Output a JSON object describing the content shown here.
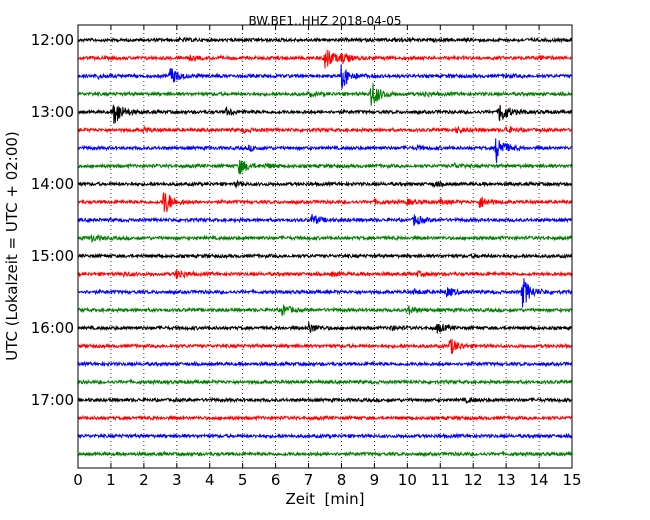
{
  "chart_data": {
    "type": "line",
    "title": "BW.BE1..HHZ 2018-04-05",
    "xlabel": "Zeit  [min]",
    "ylabel": "UTC (Lokalzeit = UTC + 02:00)",
    "xlim": [
      0,
      15
    ],
    "x_ticks": [
      "0",
      "1",
      "2",
      "3",
      "4",
      "5",
      "6",
      "7",
      "8",
      "9",
      "10",
      "11",
      "12",
      "13",
      "14",
      "15"
    ],
    "y_ticks": [
      {
        "label": "12:00",
        "row": 0
      },
      {
        "label": "13:00",
        "row": 4
      },
      {
        "label": "14:00",
        "row": 8
      },
      {
        "label": "15:00",
        "row": 12
      },
      {
        "label": "16:00",
        "row": 16
      },
      {
        "label": "17:00",
        "row": 20
      }
    ],
    "color_cycle": [
      "#000000",
      "#ff0000",
      "#0000ff",
      "#008000"
    ],
    "grid": "vertical dotted",
    "series": [
      {
        "start": "12:00",
        "color": "#000000",
        "events": [
          {
            "min": 3.1,
            "amp": 0.08
          },
          {
            "min": 9.6,
            "amp": 0.07
          }
        ]
      },
      {
        "start": "12:15",
        "color": "#ff0000",
        "events": [
          {
            "min": 3.4,
            "amp": 0.1
          },
          {
            "min": 7.5,
            "amp": 0.85
          },
          {
            "min": 8.0,
            "amp": 0.3
          },
          {
            "min": 14.0,
            "amp": 0.1
          }
        ]
      },
      {
        "start": "12:30",
        "color": "#0000ff",
        "events": [
          {
            "min": 0.6,
            "amp": 0.12
          },
          {
            "min": 2.8,
            "amp": 0.6
          },
          {
            "min": 8.0,
            "amp": 0.9
          },
          {
            "min": 13.0,
            "amp": 0.08
          }
        ]
      },
      {
        "start": "12:45",
        "color": "#008000",
        "events": [
          {
            "min": 7.0,
            "amp": 0.1
          },
          {
            "min": 8.9,
            "amp": 0.95
          },
          {
            "min": 10.5,
            "amp": 0.15
          }
        ]
      },
      {
        "start": "13:00",
        "color": "#000000",
        "events": [
          {
            "min": 1.1,
            "amp": 0.95
          },
          {
            "min": 4.5,
            "amp": 0.25
          },
          {
            "min": 12.8,
            "amp": 0.8
          }
        ]
      },
      {
        "start": "13:15",
        "color": "#ff0000",
        "events": [
          {
            "min": 2.0,
            "amp": 0.15
          },
          {
            "min": 5.0,
            "amp": 0.12
          },
          {
            "min": 11.5,
            "amp": 0.15
          },
          {
            "min": 13.0,
            "amp": 0.2
          }
        ]
      },
      {
        "start": "13:30",
        "color": "#0000ff",
        "events": [
          {
            "min": 5.2,
            "amp": 0.15
          },
          {
            "min": 10.3,
            "amp": 0.1
          },
          {
            "min": 12.7,
            "amp": 0.95
          }
        ]
      },
      {
        "start": "13:45",
        "color": "#008000",
        "events": [
          {
            "min": 4.9,
            "amp": 0.55
          },
          {
            "min": 5.7,
            "amp": 0.12
          },
          {
            "min": 11.4,
            "amp": 0.15
          }
        ]
      },
      {
        "start": "14:00",
        "color": "#000000",
        "events": [
          {
            "min": 4.8,
            "amp": 0.12
          },
          {
            "min": 10.8,
            "amp": 0.15
          }
        ]
      },
      {
        "start": "14:15",
        "color": "#ff0000",
        "events": [
          {
            "min": 2.6,
            "amp": 0.95
          },
          {
            "min": 9.0,
            "amp": 0.12
          },
          {
            "min": 10.0,
            "amp": 0.15
          },
          {
            "min": 11.0,
            "amp": 0.12
          },
          {
            "min": 12.2,
            "amp": 0.4
          }
        ]
      },
      {
        "start": "14:30",
        "color": "#0000ff",
        "events": [
          {
            "min": 7.1,
            "amp": 0.35
          },
          {
            "min": 10.2,
            "amp": 0.35
          }
        ]
      },
      {
        "start": "14:45",
        "color": "#008000",
        "events": [
          {
            "min": 0.4,
            "amp": 0.2
          }
        ]
      },
      {
        "start": "15:00",
        "color": "#000000",
        "events": [
          {
            "min": 12.0,
            "amp": 0.08
          }
        ]
      },
      {
        "start": "15:15",
        "color": "#ff0000",
        "events": [
          {
            "min": 1.4,
            "amp": 0.12
          },
          {
            "min": 3.0,
            "amp": 0.35
          },
          {
            "min": 7.7,
            "amp": 0.12
          },
          {
            "min": 10.3,
            "amp": 0.12
          }
        ]
      },
      {
        "start": "15:30",
        "color": "#0000ff",
        "events": [
          {
            "min": 10.2,
            "amp": 0.15
          },
          {
            "min": 11.2,
            "amp": 0.3
          },
          {
            "min": 13.5,
            "amp": 1.0
          }
        ]
      },
      {
        "start": "15:45",
        "color": "#008000",
        "events": [
          {
            "min": 6.2,
            "amp": 0.35
          },
          {
            "min": 10.0,
            "amp": 0.3
          }
        ]
      },
      {
        "start": "16:00",
        "color": "#000000",
        "events": [
          {
            "min": 7.0,
            "amp": 0.35
          },
          {
            "min": 9.5,
            "amp": 0.12
          },
          {
            "min": 10.9,
            "amp": 0.3
          }
        ]
      },
      {
        "start": "16:15",
        "color": "#ff0000",
        "events": [
          {
            "min": 11.3,
            "amp": 0.55
          }
        ]
      },
      {
        "start": "16:30",
        "color": "#0000ff",
        "events": []
      },
      {
        "start": "16:45",
        "color": "#008000",
        "events": []
      },
      {
        "start": "17:00",
        "color": "#000000",
        "events": [
          {
            "min": 11.8,
            "amp": 0.12
          }
        ]
      },
      {
        "start": "17:15",
        "color": "#ff0000",
        "events": []
      },
      {
        "start": "17:30",
        "color": "#0000ff",
        "events": []
      },
      {
        "start": "17:45",
        "color": "#008000",
        "events": []
      }
    ]
  }
}
